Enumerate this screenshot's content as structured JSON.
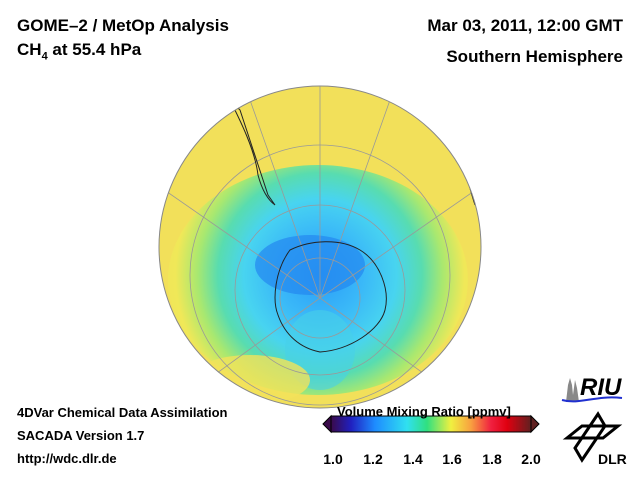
{
  "header": {
    "title": "GOME–2 / MetOp Analysis",
    "species_prefix": "CH",
    "species_sub": "4",
    "species_suffix": " at 55.4 hPa",
    "date": "Mar 03, 2011, 12:00 GMT",
    "region": "Southern Hemisphere"
  },
  "footer": {
    "line1": "4DVar Chemical Data Assimilation",
    "line2": "SACADA Version 1.7",
    "url": "http://wdc.dlr.de"
  },
  "colorbar": {
    "label": "Volume Mixing Ratio [ppmv]",
    "ticks": [
      "1.0",
      "1.2",
      "1.4",
      "1.6",
      "1.8",
      "2.0"
    ],
    "range": [
      1.0,
      2.0
    ],
    "colors": [
      "#3a0a4a",
      "#2020c0",
      "#1e8cff",
      "#30e0f0",
      "#30e080",
      "#f0f040",
      "#f8a040",
      "#f02040",
      "#e00010",
      "#602020"
    ]
  },
  "logos": {
    "riu": "RIU",
    "dlr": "DLR"
  }
}
